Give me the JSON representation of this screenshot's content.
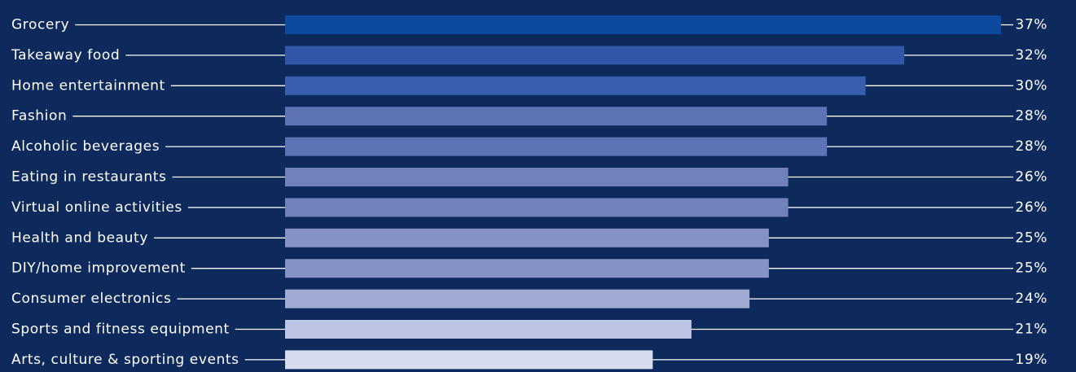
{
  "chart_data": {
    "type": "bar",
    "orientation": "horizontal",
    "categories": [
      "Grocery",
      "Takeaway food",
      "Home entertainment",
      "Fashion",
      "Alcoholic beverages",
      "Eating in restaurants",
      "Virtual online activities",
      "Health and beauty",
      "DIY/home improvement",
      "Consumer electronics",
      "Sports and fitness equipment",
      "Arts, culture & sporting events"
    ],
    "values": [
      37,
      32,
      30,
      28,
      28,
      26,
      26,
      25,
      25,
      24,
      21,
      19
    ],
    "value_labels": [
      "37%",
      "32%",
      "30%",
      "28%",
      "28%",
      "26%",
      "26%",
      "25%",
      "25%",
      "24%",
      "21%",
      "19%"
    ],
    "unit": "%",
    "xlim": [
      0,
      37
    ],
    "grid": false,
    "legend": "none",
    "colors": {
      "background": "#0e2a5c",
      "text": "#ffffff",
      "leader": "#ffffff",
      "bars": [
        "#0c4aa0",
        "#3056a8",
        "#3a5eae",
        "#5d73b5",
        "#5d73b5",
        "#7081bc",
        "#7081bc",
        "#8592c6",
        "#8592c6",
        "#a0aad3",
        "#bec4e3",
        "#d7dbee"
      ]
    }
  }
}
